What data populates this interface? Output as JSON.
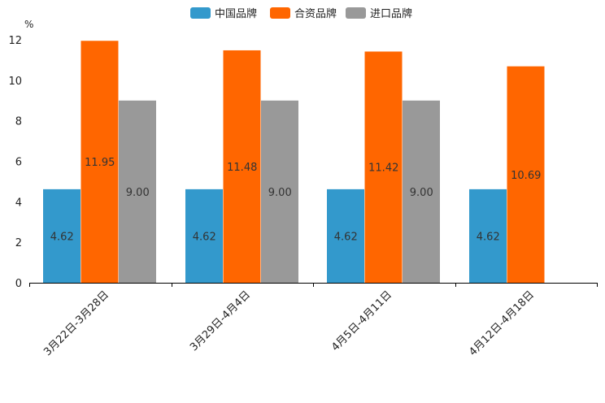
{
  "chart_data": {
    "type": "bar",
    "title": "",
    "ylabel_unit": "%",
    "xlabel": "",
    "ylim": [
      0,
      12
    ],
    "yticks": [
      0,
      2,
      4,
      6,
      8,
      10,
      12
    ],
    "categories": [
      "3月22日-3月28日",
      "3月29日-4月4日",
      "4月5日-4月11日",
      "4月12日-4月18日"
    ],
    "series": [
      {
        "name": "中国品牌",
        "color": "#3399cc",
        "values": [
          4.62,
          4.62,
          4.62,
          4.62
        ],
        "labels": [
          "4.62",
          "4.62",
          "4.62",
          "4.62"
        ]
      },
      {
        "name": "合资品牌",
        "color": "#ff6600",
        "values": [
          11.95,
          11.48,
          11.42,
          10.69
        ],
        "labels": [
          "11.95",
          "11.48",
          "11.42",
          "10.69"
        ]
      },
      {
        "name": "进口品牌",
        "color": "#999999",
        "values": [
          9.0,
          9.0,
          9.0,
          null
        ],
        "labels": [
          "9.00",
          "9.00",
          "9.00",
          null
        ]
      }
    ],
    "legend_position": "top-center"
  }
}
